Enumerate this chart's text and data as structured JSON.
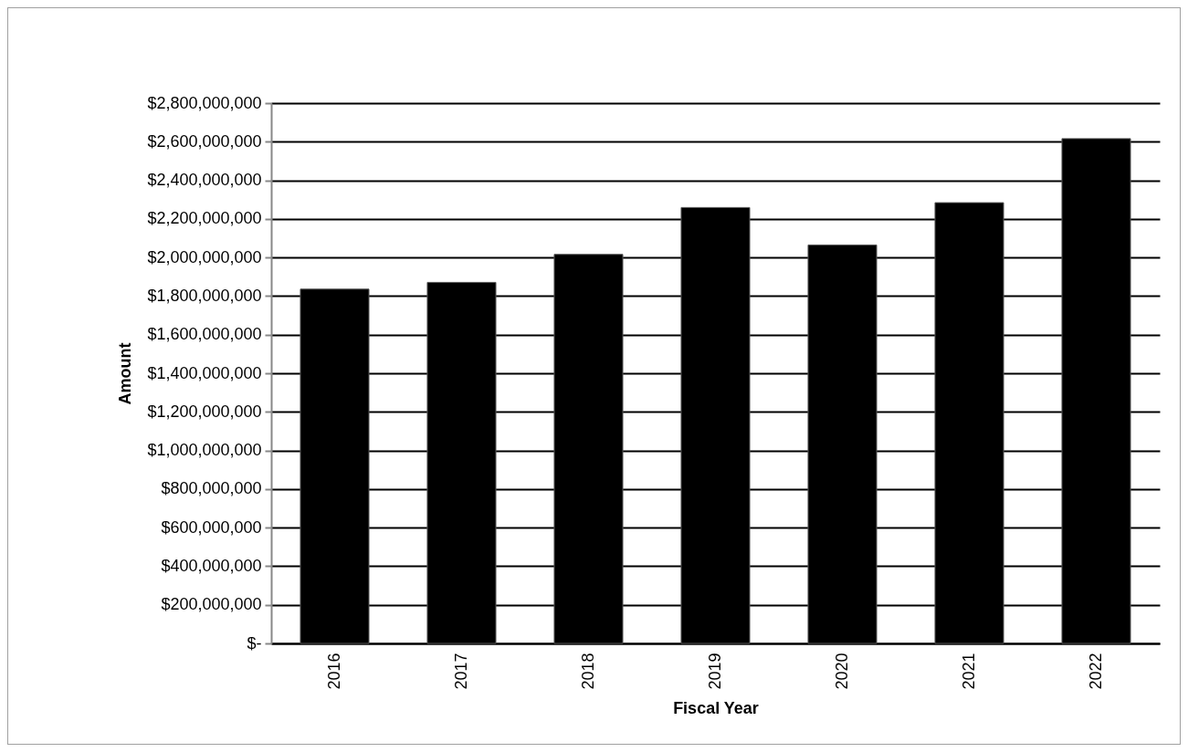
{
  "chart_data": {
    "type": "bar",
    "xlabel": "Fiscal Year",
    "ylabel": "Amount",
    "categories": [
      "2016",
      "2017",
      "2018",
      "2019",
      "2020",
      "2021",
      "2022"
    ],
    "values": [
      1836000000,
      1871000000,
      2016000000,
      2259000000,
      2065000000,
      2284000000,
      2616000000
    ],
    "color": "#000000",
    "ylim": [
      0,
      2800000000
    ],
    "yticks": [
      {
        "value": 0,
        "label": "$-"
      },
      {
        "value": 200000000,
        "label": "$200,000,000"
      },
      {
        "value": 400000000,
        "label": "$400,000,000"
      },
      {
        "value": 600000000,
        "label": "$600,000,000"
      },
      {
        "value": 800000000,
        "label": "$800,000,000"
      },
      {
        "value": 1000000000,
        "label": "$1,000,000,000"
      },
      {
        "value": 1200000000,
        "label": "$1,200,000,000"
      },
      {
        "value": 1400000000,
        "label": "$1,400,000,000"
      },
      {
        "value": 1600000000,
        "label": "$1,600,000,000"
      },
      {
        "value": 1800000000,
        "label": "$1,800,000,000"
      },
      {
        "value": 2000000000,
        "label": "$2,000,000,000"
      },
      {
        "value": 2200000000,
        "label": "$2,200,000,000"
      },
      {
        "value": 2400000000,
        "label": "$2,400,000,000"
      },
      {
        "value": 2600000000,
        "label": "$2,600,000,000"
      },
      {
        "value": 2800000000,
        "label": "$2,800,000,000"
      }
    ],
    "grid": "y"
  }
}
